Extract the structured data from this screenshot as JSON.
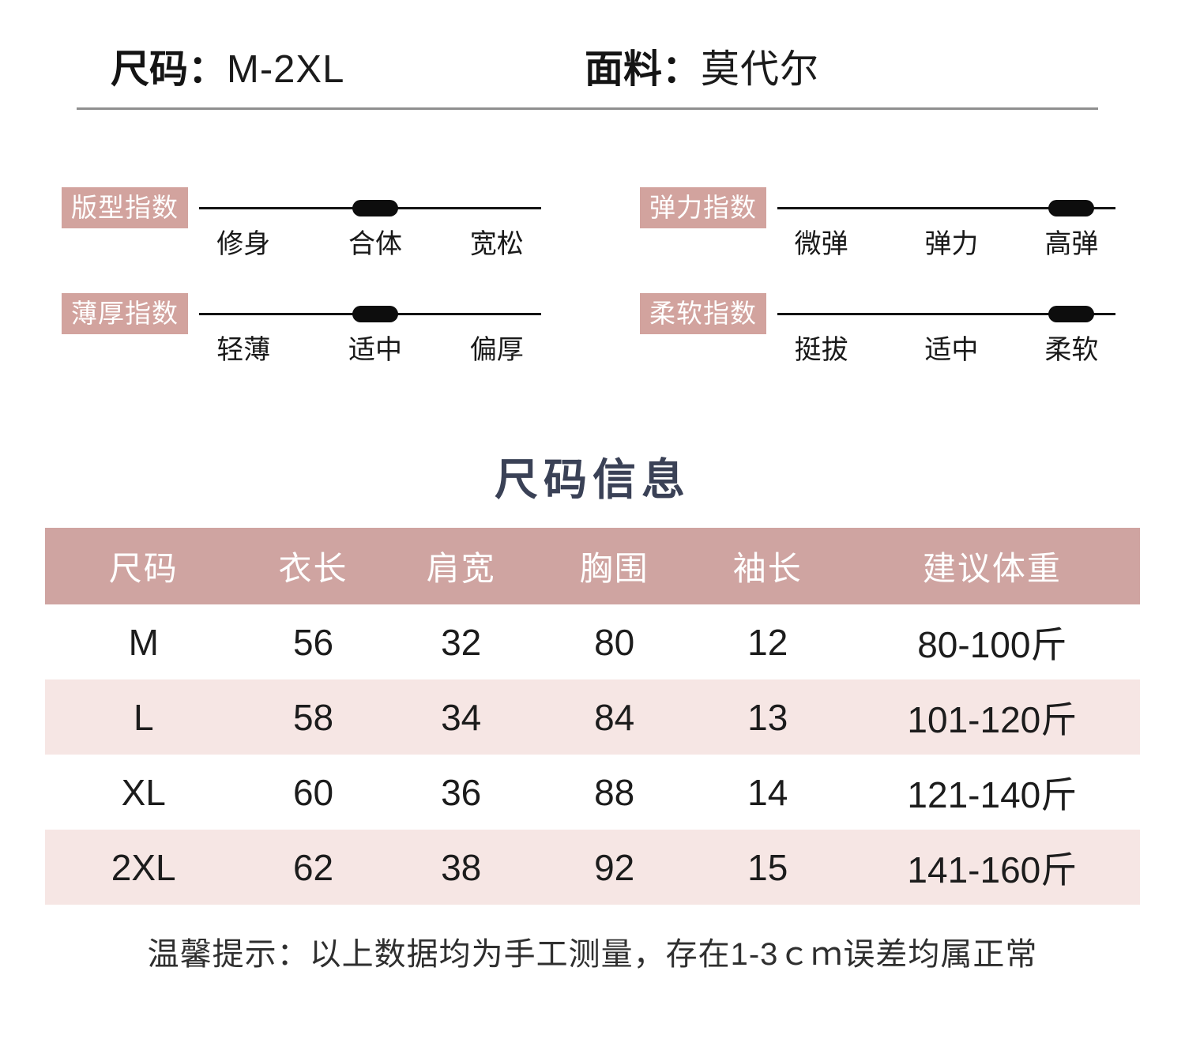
{
  "header": {
    "size_label": "尺码：",
    "size_value": "M-2XL",
    "fabric_label": "面料：",
    "fabric_value": "莫代尔"
  },
  "indicators": [
    {
      "name": "版型指数",
      "labels": [
        "修身",
        "合体",
        "宽松"
      ],
      "marker": "middle"
    },
    {
      "name": "弹力指数",
      "labels": [
        "微弹",
        "弹力",
        "高弹"
      ],
      "marker": "right"
    },
    {
      "name": "薄厚指数",
      "labels": [
        "轻薄",
        "适中",
        "偏厚"
      ],
      "marker": "middle"
    },
    {
      "name": "柔软指数",
      "labels": [
        "挺拔",
        "适中",
        "柔软"
      ],
      "marker": "right"
    }
  ],
  "size_table": {
    "title": "尺码信息",
    "headers": [
      "尺码",
      "衣长",
      "肩宽",
      "胸围",
      "袖长",
      "建议体重"
    ],
    "rows": [
      [
        "M",
        "56",
        "32",
        "80",
        "12",
        "80-100斤"
      ],
      [
        "L",
        "58",
        "34",
        "84",
        "13",
        "101-120斤"
      ],
      [
        "XL",
        "60",
        "36",
        "88",
        "14",
        "121-140斤"
      ],
      [
        "2XL",
        "62",
        "38",
        "92",
        "15",
        "141-160斤"
      ]
    ]
  },
  "note": "温馨提示：以上数据均为手工测量，存在1-3ｃｍ误差均属正常",
  "colors": {
    "badge_bg": "#d2a39e",
    "table_header_bg": "#cfa4a1",
    "table_row_alt_bg": "#f6e6e4",
    "title_color": "#3a4156",
    "marker_color": "#0d0d0d",
    "divider_color": "#8f8f8f"
  }
}
